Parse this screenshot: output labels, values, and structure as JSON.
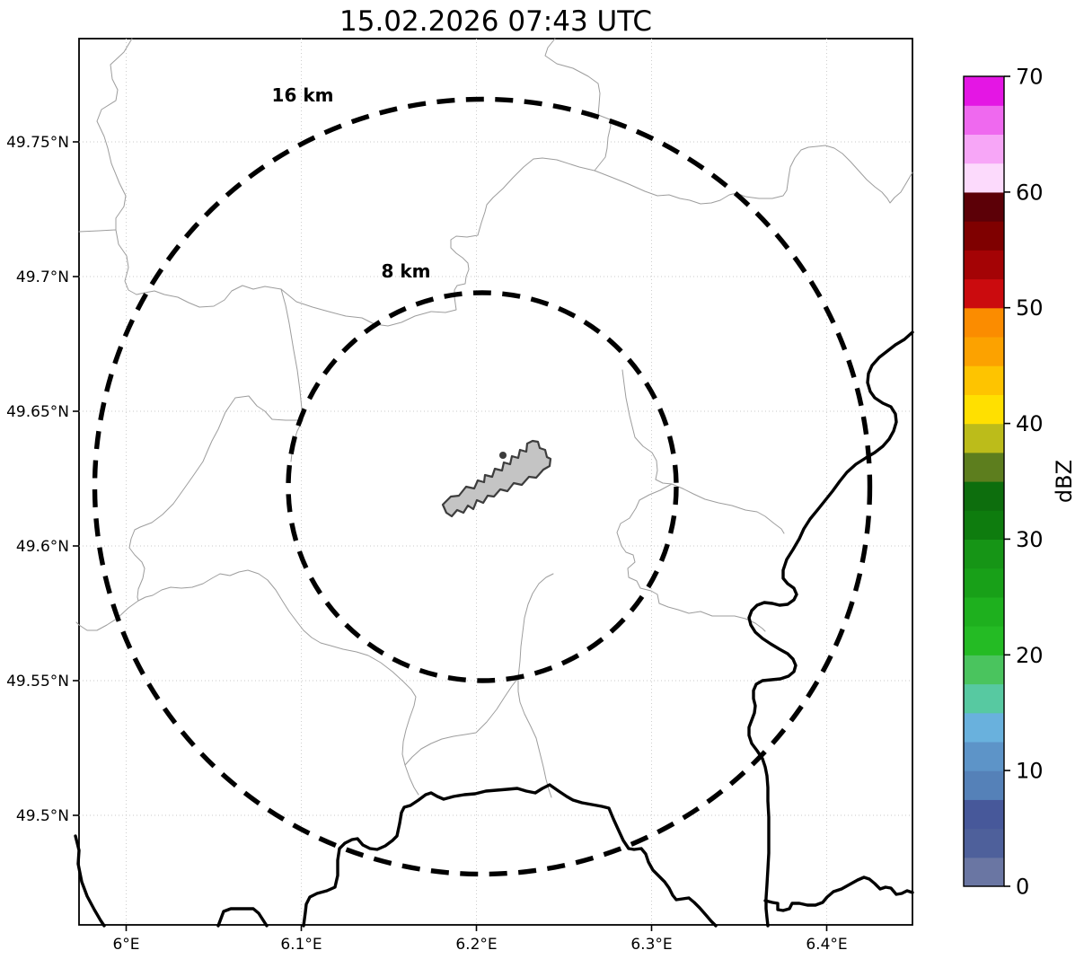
{
  "title": "15.02.2026 07:43 UTC",
  "map": {
    "range_rings": [
      {
        "label": "16 km"
      },
      {
        "label": "8 km"
      }
    ],
    "colors": {
      "ring": "#000000",
      "airport_fill": "#c4c4c4",
      "airport_outline": "#3d3d3d",
      "thin_boundary": "#9d9d9d",
      "thick_border": "#000000",
      "grid": "#c9c9c9"
    }
  },
  "axes": {
    "lat_ticks": [
      "49.75°N",
      "49.7°N",
      "49.65°N",
      "49.6°N",
      "49.55°N",
      "49.5°N"
    ],
    "lon_ticks": [
      "6°E",
      "6.1°E",
      "6.2°E",
      "6.3°E",
      "6.4°E"
    ]
  },
  "colorbar": {
    "label": "dBZ",
    "tick_labels": [
      "0",
      "10",
      "20",
      "30",
      "40",
      "50",
      "60",
      "70"
    ],
    "min": 0,
    "max": 70,
    "segment_step_dbz": 2.5,
    "colors_bottom_to_top": [
      "#6a76a3",
      "#4e609b",
      "#47589a",
      "#5581b8",
      "#5d94c8",
      "#69b1dd",
      "#57c9a1",
      "#4ac45e",
      "#24bb24",
      "#1eb01e",
      "#18a018",
      "#169516",
      "#0e7c0e",
      "#0d6e0d",
      "#5d7e1e",
      "#bcbc1a",
      "#ffe000",
      "#fec400",
      "#fca200",
      "#fb8c00",
      "#cb0b0e",
      "#a40305",
      "#7f0000",
      "#5c0007",
      "#fcdafc",
      "#f7a6f7",
      "#ef69ef",
      "#e416e4"
    ]
  }
}
